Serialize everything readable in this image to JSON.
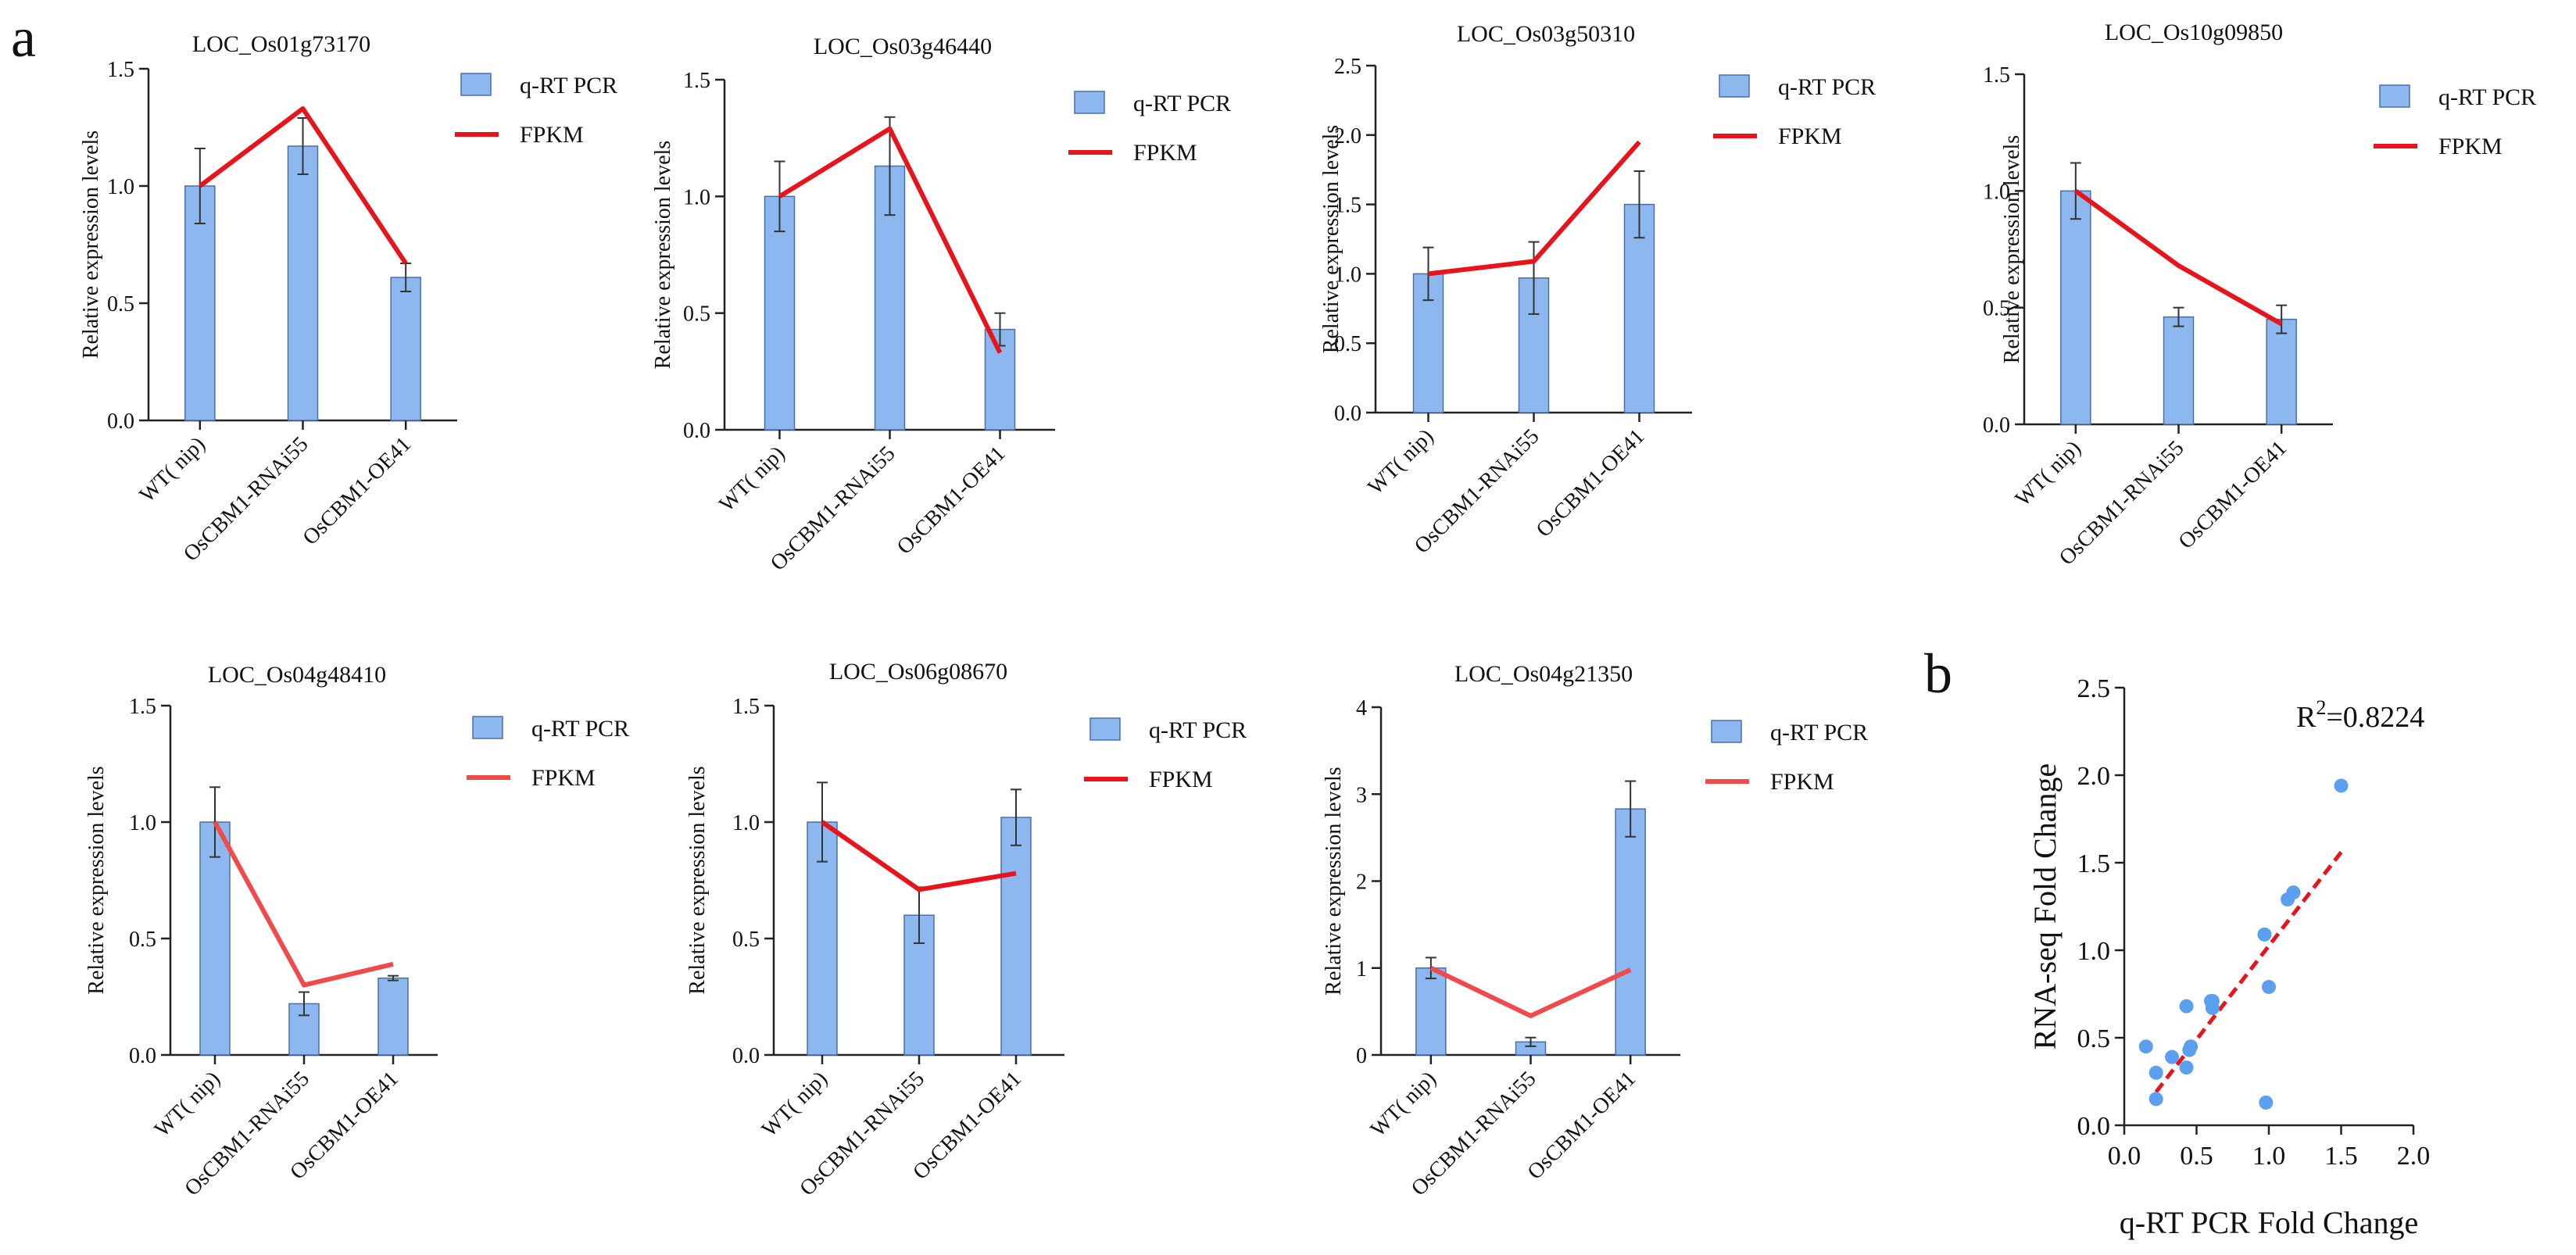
{
  "panel_labels": {
    "a": "a",
    "b": "b"
  },
  "legend": {
    "bar_label": "q-RT PCR",
    "line_label": "FPKM"
  },
  "colors": {
    "bar": "#8db8ef",
    "bar_stroke": "#4a6fa5",
    "line": "#e8141b",
    "line_light": "#f04a4a",
    "scatter": "#5b9fef",
    "trend": "#e8141b"
  },
  "categories": [
    "WT( nip)",
    "OsCBM1-RNAi55",
    "OsCBM1-OE41"
  ],
  "ylabel": "Relative expression levels",
  "chart_data": [
    {
      "type": "bar+line",
      "title": "LOC_Os01g73170",
      "ylim": [
        0,
        1.5
      ],
      "yticks": [
        "0.0",
        "0.5",
        "1.0",
        "1.5"
      ],
      "categories": [
        "WT( nip)",
        "OsCBM1-RNAi55",
        "OsCBM1-OE41"
      ],
      "series": [
        {
          "name": "q-RT PCR",
          "values": [
            1.0,
            1.17,
            0.61
          ],
          "errors": [
            0.16,
            0.12,
            0.06
          ]
        },
        {
          "name": "FPKM",
          "values": [
            1.0,
            1.33,
            0.67
          ]
        }
      ]
    },
    {
      "type": "bar+line",
      "title": "LOC_Os03g46440",
      "ylim": [
        0,
        1.5
      ],
      "yticks": [
        "0.0",
        "0.5",
        "1.0",
        "1.5"
      ],
      "categories": [
        "WT( nip)",
        "OsCBM1-RNAi55",
        "OsCBM1-OE41"
      ],
      "series": [
        {
          "name": "q-RT PCR",
          "values": [
            1.0,
            1.13,
            0.43
          ],
          "errors": [
            0.15,
            0.21,
            0.07
          ]
        },
        {
          "name": "FPKM",
          "values": [
            1.0,
            1.29,
            0.33
          ]
        }
      ]
    },
    {
      "type": "bar+line",
      "title": "LOC_Os03g50310",
      "ylim": [
        0,
        2.5
      ],
      "yticks": [
        "0.0",
        "0.5",
        "1.0",
        "1.5",
        "2.0",
        "2.5"
      ],
      "categories": [
        "WT( nip)",
        "OsCBM1-RNAi55",
        "OsCBM1-OE41"
      ],
      "series": [
        {
          "name": "q-RT PCR",
          "values": [
            1.0,
            0.97,
            1.5
          ],
          "errors": [
            0.19,
            0.26,
            0.24
          ]
        },
        {
          "name": "FPKM",
          "values": [
            1.0,
            1.09,
            1.95
          ]
        }
      ]
    },
    {
      "type": "bar+line",
      "title": "LOC_Os10g09850",
      "ylim": [
        0,
        1.5
      ],
      "yticks": [
        "0.0",
        "0.5",
        "1.0",
        "1.5"
      ],
      "categories": [
        "WT( nip)",
        "OsCBM1-RNAi55",
        "OsCBM1-OE41"
      ],
      "series": [
        {
          "name": "q-RT PCR",
          "values": [
            1.0,
            0.46,
            0.45
          ],
          "errors": [
            0.12,
            0.04,
            0.06
          ]
        },
        {
          "name": "FPKM",
          "values": [
            1.0,
            0.68,
            0.43
          ]
        }
      ]
    },
    {
      "type": "bar+line",
      "title": "LOC_Os04g48410",
      "ylim": [
        0,
        1.5
      ],
      "yticks": [
        "0.0",
        "0.5",
        "1.0",
        "1.5"
      ],
      "categories": [
        "WT( nip)",
        "OsCBM1-RNAi55",
        "OsCBM1-OE41"
      ],
      "series": [
        {
          "name": "q-RT PCR",
          "values": [
            1.0,
            0.22,
            0.33
          ],
          "errors": [
            0.15,
            0.05,
            0.01
          ]
        },
        {
          "name": "FPKM",
          "values": [
            1.0,
            0.3,
            0.39
          ]
        }
      ]
    },
    {
      "type": "bar+line",
      "title": "LOC_Os06g08670",
      "ylim": [
        0,
        1.5
      ],
      "yticks": [
        "0.0",
        "0.5",
        "1.0",
        "1.5"
      ],
      "categories": [
        "WT( nip)",
        "OsCBM1-RNAi55",
        "OsCBM1-OE41"
      ],
      "series": [
        {
          "name": "q-RT PCR",
          "values": [
            1.0,
            0.6,
            1.02
          ],
          "errors": [
            0.17,
            0.12,
            0.12
          ]
        },
        {
          "name": "FPKM",
          "values": [
            1.0,
            0.71,
            0.78
          ]
        }
      ]
    },
    {
      "type": "bar+line",
      "title": "LOC_Os04g21350",
      "ylim": [
        0,
        4
      ],
      "yticks": [
        "0",
        "1",
        "2",
        "3",
        "4"
      ],
      "categories": [
        "WT( nip)",
        "OsCBM1-RNAi55",
        "OsCBM1-OE41"
      ],
      "series": [
        {
          "name": "q-RT PCR",
          "values": [
            1.0,
            0.15,
            2.83
          ],
          "errors": [
            0.12,
            0.05,
            0.32
          ]
        },
        {
          "name": "FPKM",
          "values": [
            1.0,
            0.45,
            0.98
          ]
        }
      ]
    },
    {
      "type": "scatter",
      "title": "",
      "xlabel": "q-RT PCR Fold Change",
      "ylabel": "RNA-seq Fold Change",
      "xlim": [
        0,
        2
      ],
      "ylim": [
        0,
        2.5
      ],
      "xticks": [
        "0.0",
        "0.5",
        "1.0",
        "1.5",
        "2.0"
      ],
      "yticks": [
        "0.0",
        "0.5",
        "1.0",
        "1.5",
        "2.0",
        "2.5"
      ],
      "annotation": {
        "r2_prefix": "R",
        "r2_sup": "2",
        "r2_value": "=0.8224"
      },
      "points": [
        [
          1.5,
          1.94
        ],
        [
          1.17,
          1.33
        ],
        [
          1.13,
          1.29
        ],
        [
          0.97,
          1.09
        ],
        [
          1.0,
          0.79
        ],
        [
          0.61,
          0.67
        ],
        [
          0.61,
          0.71
        ],
        [
          0.43,
          0.68
        ],
        [
          0.45,
          0.43
        ],
        [
          0.46,
          0.45
        ],
        [
          0.43,
          0.33
        ],
        [
          0.33,
          0.39
        ],
        [
          0.22,
          0.3
        ],
        [
          0.6,
          0.71
        ],
        [
          0.15,
          0.45
        ],
        [
          0.22,
          0.15
        ],
        [
          0.98,
          0.13
        ]
      ],
      "trendline": {
        "x": [
          0.22,
          1.5
        ],
        "y": [
          0.19,
          1.56
        ]
      }
    }
  ]
}
